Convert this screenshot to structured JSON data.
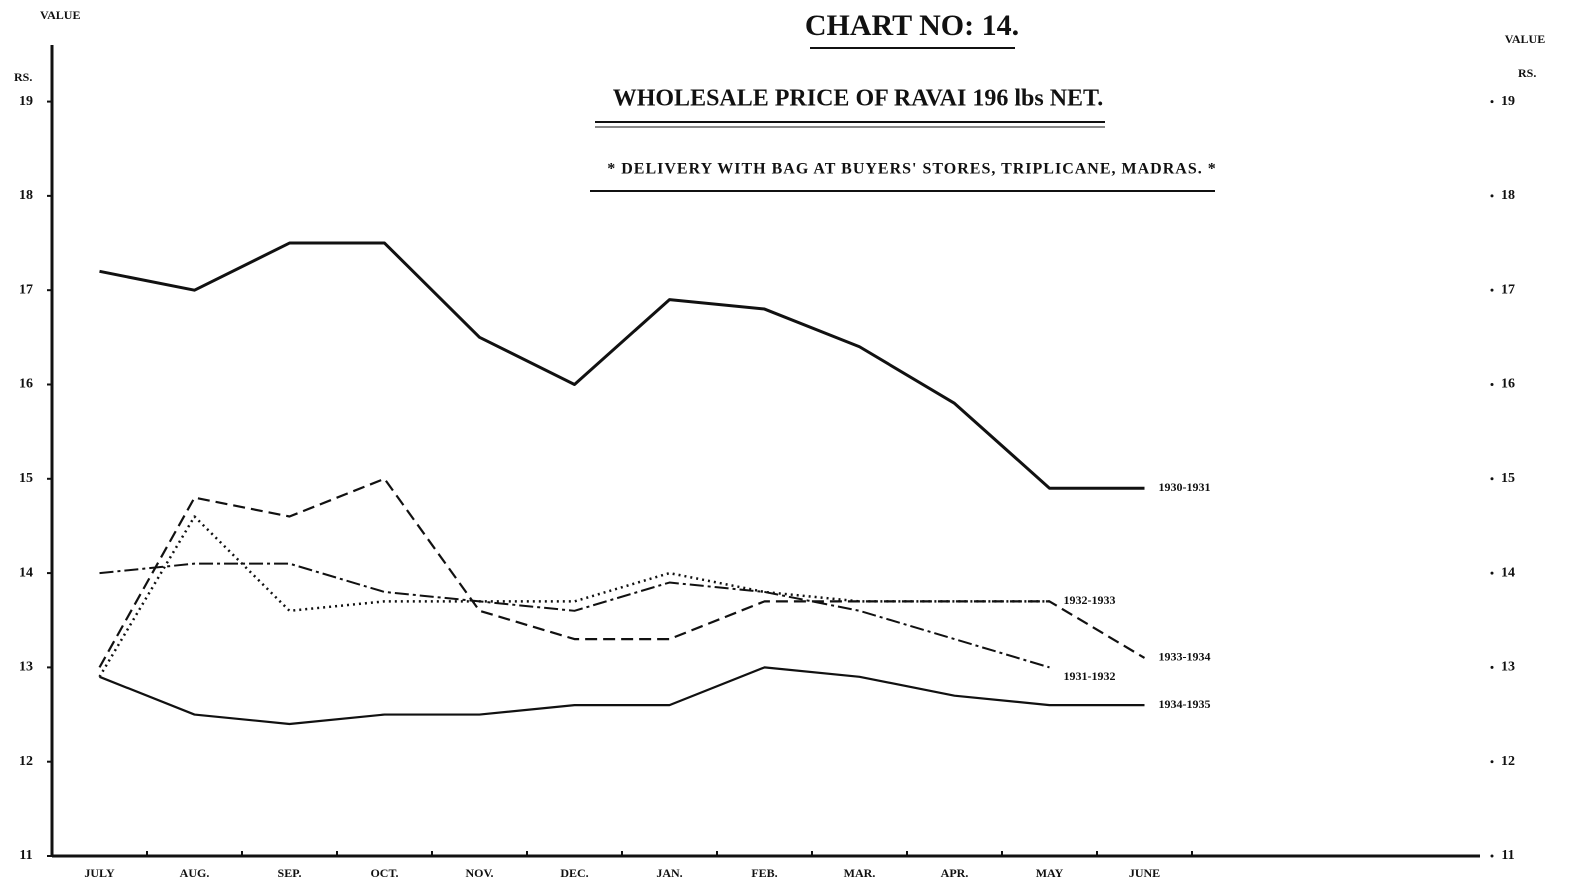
{
  "chart_data": {
    "type": "line",
    "title": "CHART NO: 14.",
    "subtitle": "WHOLESALE PRICE OF RAVAI 196 lbs NET.",
    "note": "* DELIVERY WITH BAG AT BUYERS' STORES, TRIPLICANE, MADRAS. *",
    "y_axis_label": "VALUE",
    "y_unit": "RS.",
    "y2_axis_label": "VALUE",
    "y2_unit": "RS.",
    "categories": [
      "JULY",
      "AUG.",
      "SEP.",
      "OCT.",
      "NOV.",
      "DEC.",
      "JAN.",
      "FEB.",
      "MAR.",
      "APR.",
      "MAY",
      "JUNE"
    ],
    "ylim": [
      11,
      19.6
    ],
    "yticks": [
      11,
      12,
      13,
      14,
      15,
      16,
      17,
      18,
      19
    ],
    "y2lim": [
      11,
      19.6
    ],
    "y2ticks": [
      11,
      12,
      13,
      14,
      15,
      16,
      17,
      18,
      19
    ],
    "series": [
      {
        "name": "1930-1931",
        "color": "#111",
        "style": "solid-heavy",
        "values": [
          17.2,
          17.0,
          17.5,
          17.5,
          16.5,
          16.0,
          16.9,
          16.8,
          16.4,
          15.8,
          14.9,
          14.9
        ]
      },
      {
        "name": "1931-1932",
        "color": "#111",
        "style": "dash-dot",
        "values": [
          14.0,
          14.1,
          14.1,
          13.8,
          13.7,
          13.6,
          13.9,
          13.8,
          13.6,
          13.3,
          13.0,
          null
        ]
      },
      {
        "name": "1932-1933",
        "color": "#111",
        "style": "dotted",
        "values": [
          12.9,
          14.6,
          13.6,
          13.7,
          13.7,
          13.7,
          14.0,
          13.8,
          13.7,
          13.7,
          13.7,
          null
        ]
      },
      {
        "name": "1933-1934",
        "color": "#111",
        "style": "dashed",
        "values": [
          13.0,
          14.8,
          14.6,
          15.0,
          13.6,
          13.3,
          13.3,
          13.7,
          13.7,
          13.7,
          13.7,
          13.1
        ]
      },
      {
        "name": "1934-1935",
        "color": "#111",
        "style": "solid",
        "values": [
          12.9,
          12.5,
          12.4,
          12.5,
          12.5,
          12.6,
          12.6,
          13.0,
          12.9,
          12.7,
          12.6,
          12.6
        ]
      }
    ]
  }
}
